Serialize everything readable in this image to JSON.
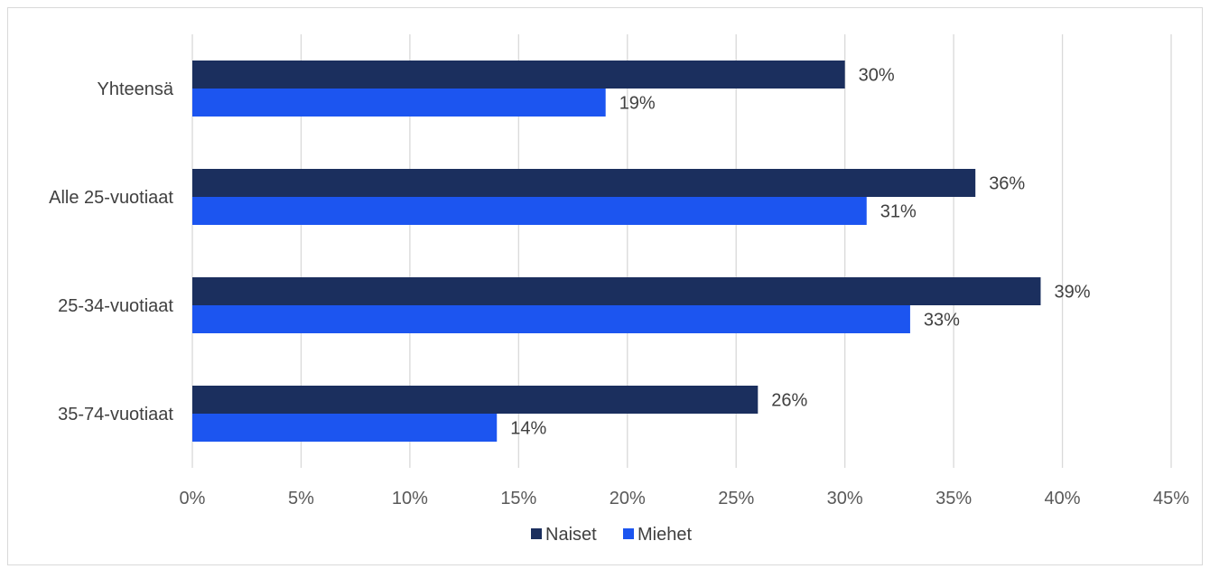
{
  "chart_data": {
    "type": "bar",
    "orientation": "horizontal",
    "categories": [
      "Yhteensä",
      "Alle 25-vuotiaat",
      "25-34-vuotiaat",
      "35-74-vuotiaat"
    ],
    "series": [
      {
        "name": "Naiset",
        "color": "#1b2f5e",
        "values": [
          30,
          36,
          39,
          26
        ],
        "labels": [
          "30%",
          "36%",
          "39%",
          "26%"
        ]
      },
      {
        "name": "Miehet",
        "color": "#1c55f0",
        "values": [
          19,
          31,
          33,
          14
        ],
        "labels": [
          "19%",
          "31%",
          "33%",
          "14%"
        ]
      }
    ],
    "xlim": [
      0,
      45
    ],
    "ticks": [
      0,
      5,
      10,
      15,
      20,
      25,
      30,
      35,
      40,
      45
    ],
    "tick_labels": [
      "0%",
      "5%",
      "10%",
      "15%",
      "20%",
      "25%",
      "30%",
      "35%",
      "40%",
      "45%"
    ],
    "grid": true,
    "legend_position": "bottom",
    "title": "",
    "xlabel": "",
    "ylabel": ""
  }
}
